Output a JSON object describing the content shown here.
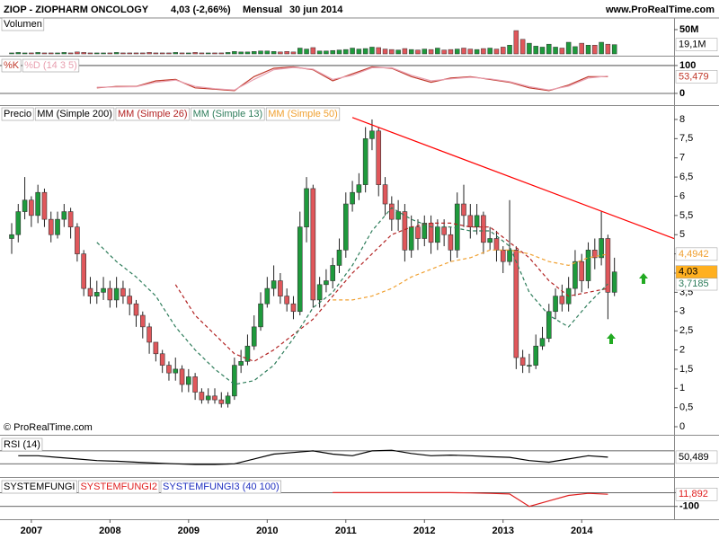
{
  "header": {
    "symbol": "ZIOP - ZIOPHARM ONCOLOGY",
    "quote": "4,03 (-2,66%)",
    "period": "Mensual",
    "date": "30 jun 2014",
    "site": "www.ProRealTime.com"
  },
  "chart_data": [
    {
      "type": "candlestick",
      "price_label": "Precio",
      "copyright": "© ProRealTime.com",
      "up_color": "#1e9a3c",
      "down_color": "#e0575b",
      "open": [
        4.9,
        5.0,
        5.6,
        5.9,
        5.5,
        6.1,
        5.4,
        5.0,
        5.4,
        5.6,
        5.2,
        4.5,
        3.6,
        3.4,
        3.5,
        3.6,
        3.3,
        3.6,
        3.4,
        3.2,
        2.9,
        2.6,
        2.2,
        1.9,
        1.6,
        1.4,
        1.5,
        1.1,
        1.3,
        0.9,
        0.7,
        0.8,
        0.7,
        0.6,
        0.8,
        1.6,
        1.7,
        2.1,
        2.6,
        3.2,
        3.6,
        3.8,
        3.4,
        3.2,
        3.0,
        5.2,
        6.2,
        3.3,
        3.7,
        3.8,
        4.2,
        4.6,
        5.8,
        6.1,
        6.3,
        7.5,
        7.7,
        6.3,
        5.8,
        5.4,
        5.6,
        4.6,
        5.2,
        4.9,
        5.3,
        4.8,
        5.2,
        5.0,
        4.6,
        5.8,
        5.5,
        5.2,
        5.5,
        4.8,
        4.9,
        4.6,
        4.3,
        4.6,
        1.8,
        1.6,
        1.6,
        2.1,
        2.3,
        3.0,
        3.4,
        3.2,
        3.6,
        4.3,
        3.8,
        4.6,
        4.4,
        4.9,
        3.5
      ],
      "high": [
        5.3,
        5.8,
        6.5,
        6.0,
        6.3,
        6.2,
        5.6,
        5.6,
        5.8,
        5.7,
        5.3,
        4.6,
        3.9,
        3.8,
        3.9,
        3.8,
        3.9,
        3.8,
        3.6,
        3.3,
        3.0,
        2.7,
        2.2,
        2.0,
        1.7,
        1.8,
        1.6,
        1.5,
        1.4,
        1.0,
        1.0,
        1.0,
        0.9,
        0.9,
        1.8,
        2.0,
        2.4,
        2.9,
        3.5,
        3.9,
        4.2,
        4.0,
        3.6,
        3.4,
        5.6,
        6.5,
        6.3,
        3.9,
        4.1,
        4.4,
        4.9,
        6.1,
        6.4,
        6.6,
        7.8,
        8.0,
        7.8,
        6.5,
        6.0,
        5.9,
        5.8,
        5.5,
        5.4,
        5.5,
        5.5,
        5.4,
        5.4,
        5.2,
        6.1,
        6.3,
        5.8,
        5.8,
        5.6,
        5.2,
        5.1,
        4.7,
        5.9,
        4.7,
        2.0,
        1.9,
        2.4,
        2.6,
        3.2,
        3.6,
        3.7,
        3.9,
        4.6,
        4.5,
        4.8,
        4.9,
        5.6,
        5.0,
        4.4
      ],
      "low": [
        4.5,
        4.8,
        5.4,
        5.2,
        5.3,
        5.2,
        4.8,
        4.9,
        5.2,
        4.9,
        4.3,
        3.4,
        3.2,
        3.2,
        3.3,
        3.1,
        3.1,
        3.2,
        2.9,
        2.6,
        2.3,
        1.9,
        1.7,
        1.4,
        1.2,
        1.2,
        0.9,
        0.9,
        0.7,
        0.6,
        0.6,
        0.6,
        0.5,
        0.5,
        0.7,
        1.4,
        1.6,
        2.0,
        2.5,
        3.1,
        3.4,
        3.2,
        3.0,
        2.8,
        2.9,
        4.8,
        3.1,
        3.1,
        3.5,
        3.6,
        4.0,
        4.4,
        5.6,
        5.9,
        6.1,
        7.2,
        6.0,
        5.5,
        5.1,
        5.1,
        4.3,
        4.4,
        4.6,
        4.7,
        4.5,
        4.6,
        4.7,
        4.3,
        4.4,
        5.2,
        4.9,
        5.0,
        4.5,
        4.6,
        4.3,
        4.0,
        4.2,
        1.5,
        1.4,
        1.4,
        1.5,
        2.0,
        2.2,
        2.8,
        3.0,
        3.0,
        3.4,
        3.5,
        3.6,
        4.1,
        4.2,
        2.8,
        3.4
      ],
      "close": [
        5.0,
        5.6,
        5.9,
        5.5,
        6.1,
        5.4,
        5.0,
        5.4,
        5.6,
        5.2,
        4.5,
        3.6,
        3.4,
        3.5,
        3.6,
        3.3,
        3.6,
        3.4,
        3.2,
        2.9,
        2.6,
        2.2,
        1.9,
        1.6,
        1.4,
        1.5,
        1.1,
        1.3,
        0.9,
        0.7,
        0.8,
        0.7,
        0.6,
        0.8,
        1.6,
        1.7,
        2.1,
        2.6,
        3.2,
        3.6,
        3.8,
        3.4,
        3.2,
        3.0,
        5.2,
        6.2,
        3.3,
        3.7,
        3.8,
        4.2,
        4.6,
        5.8,
        6.1,
        6.3,
        7.5,
        7.7,
        6.3,
        5.8,
        5.4,
        5.6,
        4.6,
        5.2,
        4.9,
        5.3,
        4.8,
        5.2,
        5.0,
        4.6,
        5.8,
        5.5,
        5.2,
        5.5,
        4.8,
        4.9,
        4.6,
        4.3,
        4.6,
        1.8,
        1.6,
        1.6,
        2.1,
        2.3,
        3.0,
        3.4,
        3.2,
        3.6,
        4.3,
        3.8,
        4.6,
        4.4,
        4.9,
        3.5,
        4.03
      ],
      "close_label": "4,03",
      "series": [
        {
          "name": "MM (Simple 200)",
          "color": "#000000"
        },
        {
          "name": "MM (Simple 26)",
          "color": "#b22222",
          "values": [
            null,
            null,
            null,
            null,
            null,
            null,
            null,
            null,
            3.7,
            2.9,
            2.4,
            1.9,
            1.7,
            2.0,
            2.4,
            2.8,
            3.4,
            4.0,
            4.5,
            5.0,
            5.2,
            5.3,
            5.3,
            5.2,
            5.2,
            4.8,
            4.4,
            3.8,
            3.4,
            3.5,
            3.6
          ]
        },
        {
          "name": "MM (Simple 13)",
          "color": "#2e7d5b",
          "values": [
            null,
            null,
            null,
            null,
            4.8,
            4.3,
            3.9,
            3.4,
            2.6,
            2.0,
            1.5,
            1.1,
            1.2,
            1.6,
            2.3,
            3.1,
            3.5,
            4.2,
            5.1,
            5.7,
            5.4,
            5.2,
            5.2,
            5.1,
            5.1,
            4.7,
            3.5,
            2.9,
            2.6,
            3.2,
            3.7185
          ],
          "last_label": "3,7185"
        },
        {
          "name": "MM (Simple 50)",
          "color": "#f0a030",
          "values": [
            null,
            null,
            null,
            null,
            null,
            null,
            null,
            null,
            null,
            null,
            null,
            null,
            null,
            null,
            null,
            null,
            3.3,
            3.3,
            3.4,
            3.6,
            3.9,
            4.1,
            4.3,
            4.4,
            4.6,
            4.6,
            4.5,
            4.3,
            4.2,
            4.4,
            4.4942
          ],
          "last_label": "4,4942"
        }
      ],
      "trendline": {
        "color": "#ff0000",
        "values": [
          8.05,
          4.9
        ]
      },
      "ylim": [
        -0.21,
        8.35
      ],
      "yticks": [
        0,
        {
          "value": 0.5,
          "label": "0,5"
        },
        1,
        {
          "value": 1.5,
          "label": "1,5"
        },
        2,
        {
          "value": 2.5,
          "label": "2,5"
        },
        3,
        {
          "value": 3.5,
          "label": "3,5"
        },
        4,
        {
          "value": 4.5,
          "label": "4,5"
        },
        5,
        {
          "value": 5.5,
          "label": "5,5"
        },
        6,
        {
          "value": 6.5,
          "label": "6,5"
        },
        7,
        {
          "value": 7.5,
          "label": "7,5"
        },
        8
      ],
      "xticks": [
        2007,
        2008,
        2009,
        2010,
        2011,
        2012,
        2013,
        2014
      ]
    },
    {
      "type": "bar",
      "title": "Volumen",
      "values": [
        2,
        3,
        2,
        2,
        3,
        2,
        2,
        2,
        3,
        2,
        4,
        3,
        2,
        2,
        2,
        2,
        3,
        2,
        2,
        2,
        2,
        3,
        2,
        2,
        2,
        3,
        2,
        2,
        3,
        2,
        2,
        2,
        2,
        3,
        5,
        4,
        4,
        5,
        6,
        6,
        5,
        4,
        5,
        4,
        12,
        10,
        13,
        6,
        6,
        7,
        8,
        9,
        12,
        10,
        11,
        14,
        13,
        10,
        9,
        8,
        11,
        9,
        8,
        10,
        9,
        12,
        8,
        9,
        10,
        12,
        10,
        9,
        11,
        12,
        10,
        14,
        18,
        48,
        30,
        22,
        16,
        14,
        20,
        14,
        12,
        24,
        15,
        22,
        18,
        18,
        24,
        20,
        19.1
      ],
      "last_label": "19,1M",
      "ylim": [
        -3.7,
        74
      ],
      "yticks": [
        {
          "value": 50,
          "label": "50M"
        }
      ]
    },
    {
      "type": "line",
      "series": [
        {
          "name": "%K",
          "color": "#c0392b",
          "values": [
            null,
            null,
            null,
            null,
            20,
            25,
            25,
            45,
            50,
            20,
            15,
            10,
            60,
            90,
            95,
            85,
            45,
            70,
            95,
            90,
            60,
            40,
            55,
            60,
            50,
            40,
            20,
            10,
            30,
            60,
            60
          ]
        },
        {
          "name": "%D (14 3 5)",
          "color": "#e8a0b0",
          "values": [
            null,
            null,
            null,
            null,
            22,
            23,
            24,
            40,
            48,
            25,
            17,
            12,
            50,
            85,
            93,
            87,
            50,
            65,
            92,
            92,
            65,
            45,
            52,
            58,
            52,
            42,
            24,
            12,
            26,
            55,
            62
          ]
        }
      ],
      "last_label": "53,479",
      "ylim": [
        -42,
        132
      ],
      "yticks": [
        0,
        100
      ]
    },
    {
      "type": "line",
      "series": [
        {
          "name": "RSI (14)",
          "color": "#000000",
          "values": [
            55,
            55,
            50,
            45,
            40,
            38,
            35,
            32,
            30,
            28,
            28,
            30,
            45,
            60,
            65,
            70,
            60,
            55,
            70,
            72,
            62,
            55,
            57,
            55,
            52,
            50,
            40,
            35,
            45,
            55,
            50.5
          ]
        }
      ],
      "last_label": "50,489",
      "levels": [
        70,
        30
      ],
      "ylim": [
        -11,
        117
      ]
    },
    {
      "type": "line",
      "series": [
        {
          "name": "SYSTEMFUNGI",
          "color": "#000000"
        },
        {
          "name": "SYSTEMFUNGI2",
          "color": "#e02020",
          "values": [
            null,
            null,
            null,
            null,
            null,
            null,
            null,
            null,
            null,
            null,
            null,
            null,
            null,
            null,
            null,
            null,
            0,
            0,
            0,
            0,
            0,
            0,
            0,
            -2,
            -5,
            -10,
            -100,
            -60,
            -20,
            -5,
            -12
          ]
        },
        {
          "name": "SYSTEMFUNGI3 (40 100)",
          "color": "#2030c0"
        }
      ],
      "last_label": "11,892",
      "ylim": [
        -193,
        107
      ],
      "yticks": [
        0,
        -100
      ]
    }
  ]
}
